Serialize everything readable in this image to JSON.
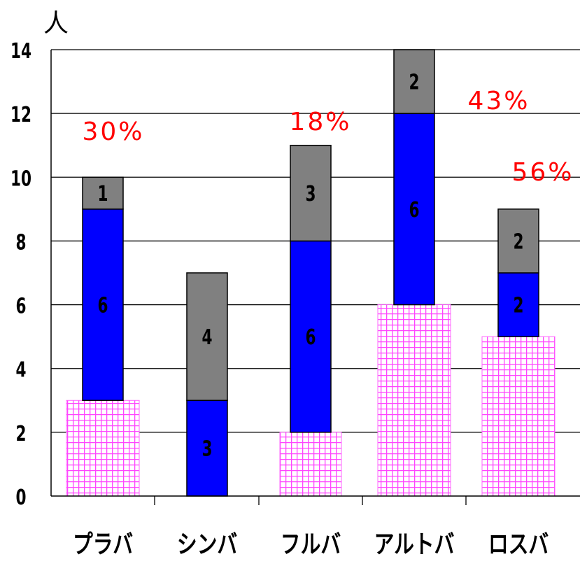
{
  "chart_data": {
    "type": "bar",
    "stacked": true,
    "ylabel": "人",
    "ylim": [
      0,
      14
    ],
    "yticks": [
      0,
      2,
      4,
      6,
      8,
      10,
      12,
      14
    ],
    "grid": true,
    "categories": [
      "プラバ",
      "シンバ",
      "フルバ",
      "アルトバ",
      "ロスバ"
    ],
    "series": [
      {
        "values": [
          3,
          0,
          2,
          6,
          5
        ],
        "color": "#ff44ff",
        "pattern": "grid",
        "show_labels": false
      },
      {
        "values": [
          6,
          3,
          6,
          6,
          2
        ],
        "color": "#0000ff",
        "show_labels": true
      },
      {
        "values": [
          1,
          4,
          3,
          2,
          2
        ],
        "color": "#808080",
        "show_labels": true
      }
    ],
    "annotations": [
      "30%",
      "",
      "18%",
      "43%",
      "56%"
    ],
    "annotation_color": "#ff0000"
  }
}
